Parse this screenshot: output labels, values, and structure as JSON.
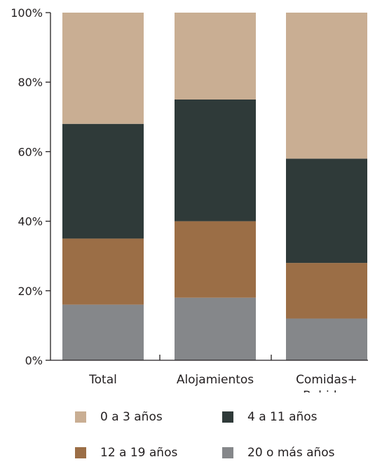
{
  "chart_data": {
    "type": "bar",
    "stacked": true,
    "percent": true,
    "categories": [
      [
        "Total"
      ],
      [
        "Alojamientos"
      ],
      [
        "Comidas+",
        "Bebidas"
      ]
    ],
    "series": [
      {
        "name": "20 o más años",
        "color": "#85878a",
        "values": [
          16,
          18,
          12
        ]
      },
      {
        "name": "12 a 19 años",
        "color": "#9b6e46",
        "values": [
          19,
          22,
          16
        ]
      },
      {
        "name": "4 a 11 años",
        "color": "#2f3a39",
        "values": [
          33,
          35,
          30
        ]
      },
      {
        "name": "0 a 3 años",
        "color": "#c9ae93",
        "values": [
          32,
          25,
          42
        ]
      }
    ],
    "ylim": [
      0,
      100
    ],
    "yticks": [
      "0%",
      "20%",
      "40%",
      "60%",
      "80%",
      "100%"
    ],
    "legend_order": [
      "0 a 3 años",
      "4 a 11 años",
      "12 a 19 años",
      "20 o más años"
    ],
    "grid": false,
    "legend_placement": "bottom"
  }
}
